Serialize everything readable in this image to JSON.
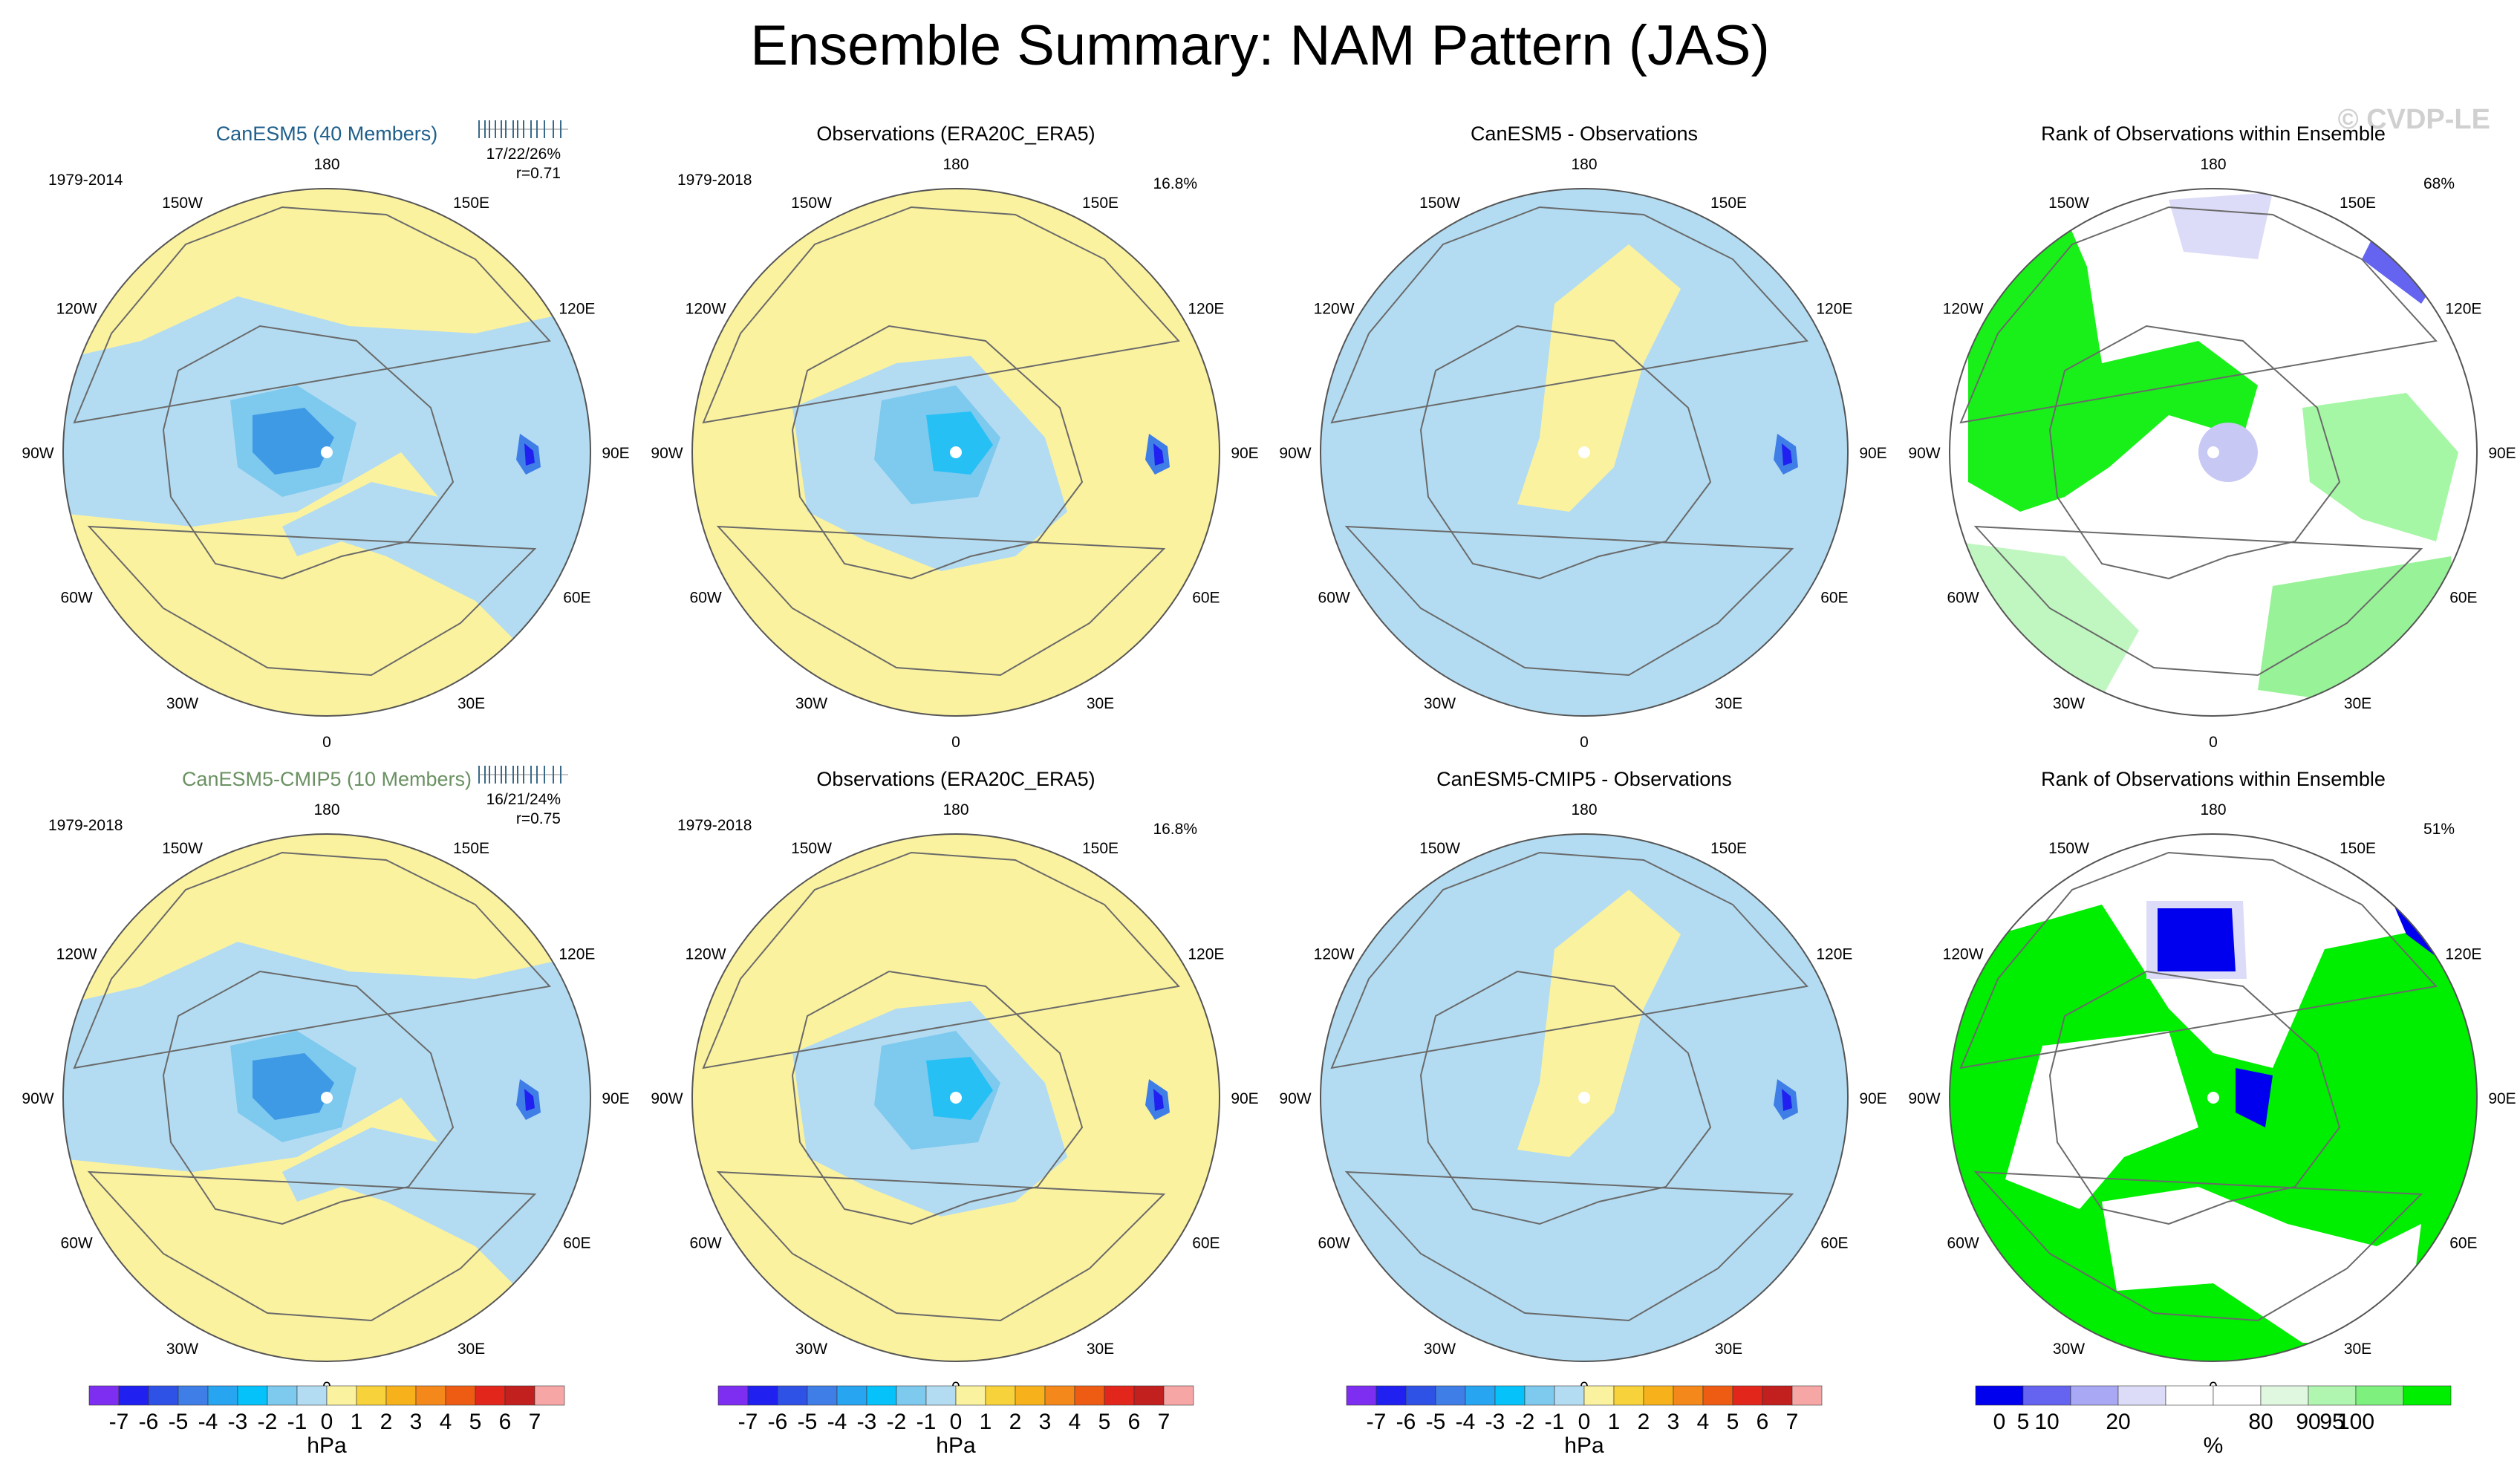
{
  "figure": {
    "title": "Ensemble Summary: NAM Pattern (JAS)",
    "watermark": "© CVDP-LE"
  },
  "colors": {
    "land_line": "#6a6a6a",
    "zero_band_neg": "#b3dcf2",
    "zero_band_pos": "#fbf29f",
    "model_title_1": "#1f5f8b",
    "model_title_2": "#6a9162"
  },
  "longitude_labels": [
    "180",
    "150E",
    "120E",
    "90E",
    "60E",
    "30E",
    "0",
    "30W",
    "60W",
    "90W",
    "120W",
    "150W"
  ],
  "panels": [
    {
      "id": "canesm5",
      "title": "CanESM5 (40 Members)",
      "title_color": "#1f5f8b",
      "period": "1979-2014",
      "stats": "17/22/26%",
      "corr": "r=0.71",
      "pct": "",
      "kind": "model"
    },
    {
      "id": "obs-1",
      "title": "Observations (ERA20C_ERA5)",
      "title_color": "#000000",
      "period": "1979-2018",
      "stats": "",
      "corr": "",
      "pct": "16.8%",
      "kind": "obs"
    },
    {
      "id": "diff-1",
      "title": "CanESM5 - Observations",
      "title_color": "#000000",
      "period": "",
      "stats": "",
      "corr": "",
      "pct": "",
      "kind": "diff"
    },
    {
      "id": "rank-1",
      "title": "Rank of Observations within Ensemble",
      "title_color": "#000000",
      "period": "",
      "stats": "",
      "corr": "",
      "pct": "68%",
      "kind": "rank"
    },
    {
      "id": "cmip5",
      "title": "CanESM5-CMIP5 (10 Members)",
      "title_color": "#6a9162",
      "period": "1979-2018",
      "stats": "16/21/24%",
      "corr": "r=0.75",
      "pct": "",
      "kind": "model"
    },
    {
      "id": "obs-2",
      "title": "Observations (ERA20C_ERA5)",
      "title_color": "#000000",
      "period": "1979-2018",
      "stats": "",
      "corr": "",
      "pct": "16.8%",
      "kind": "obs"
    },
    {
      "id": "diff-2",
      "title": "CanESM5-CMIP5 - Observations",
      "title_color": "#000000",
      "period": "",
      "stats": "",
      "corr": "",
      "pct": "",
      "kind": "diff"
    },
    {
      "id": "rank-2",
      "title": "Rank of Observations within Ensemble",
      "title_color": "#000000",
      "period": "",
      "stats": "",
      "corr": "",
      "pct": "51%",
      "kind": "rank"
    }
  ],
  "chart_data": [
    {
      "type": "heatmap",
      "name": "NAM pattern contour colorbar",
      "units": "hPa",
      "colors": [
        "#7d2ef0",
        "#2020f0",
        "#2f52e6",
        "#3f7ee6",
        "#27a5f0",
        "#05c3fa",
        "#7ec9ee",
        "#b3dcf2",
        "#fbf29f",
        "#f8d23a",
        "#f7b21b",
        "#f5881b",
        "#ee5c13",
        "#e3261c",
        "#c21f1f",
        "#f7a6a6"
      ],
      "tick_labels": [
        "-7",
        "-6",
        "-5",
        "-4",
        "-3",
        "-2",
        "-1",
        "0",
        "1",
        "2",
        "3",
        "4",
        "5",
        "6",
        "7"
      ]
    },
    {
      "type": "heatmap",
      "name": "Rank colorbar",
      "units": "%",
      "colors": [
        "#0000ee",
        "#6464f0",
        "#a8a8f5",
        "#dcdcf8",
        "#ffffff",
        "#ffffff",
        "#e0f8e0",
        "#b0f5b0",
        "#7ef07e",
        "#00ee00"
      ],
      "tick_labels": [
        "0",
        "5",
        "10",
        "20",
        "80",
        "90",
        "95",
        "100"
      ],
      "tick_positions": [
        0.5,
        1,
        1.5,
        3,
        6,
        7,
        7.5,
        8
      ]
    }
  ]
}
